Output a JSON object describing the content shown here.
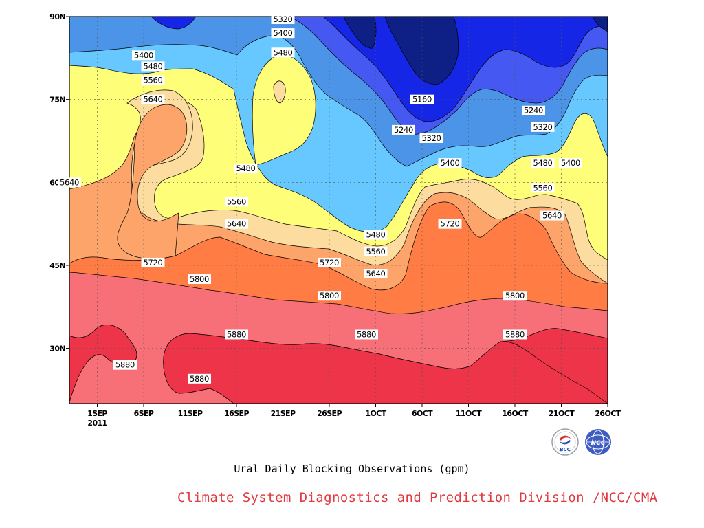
{
  "chart_data": {
    "type": "contour",
    "title": "Ural Daily Blocking Observations (gpm)",
    "x_tick_labels": [
      "1SEP",
      "6SEP",
      "11SEP",
      "16SEP",
      "21SEP",
      "26SEP",
      "1OCT",
      "6OCT",
      "11OCT",
      "16OCT",
      "21OCT",
      "26OCT"
    ],
    "x_year_label": "2011",
    "y_tick_labels": [
      "30N",
      "45N",
      "60N",
      "75N",
      "90N"
    ],
    "y_ticks": [
      30,
      45,
      60,
      75,
      90
    ],
    "ylim": [
      20,
      90
    ],
    "x_range_days": [
      "2011-08-29",
      "2011-10-26"
    ],
    "contour_levels": [
      5160,
      5240,
      5320,
      5400,
      5480,
      5560,
      5640,
      5720,
      5800,
      5880
    ],
    "band_colors": [
      "#ed3448",
      "#f77078",
      "#ff7d45",
      "#fda46b",
      "#fddc9f",
      "#fefe78",
      "#66c8fe",
      "#4b94e8",
      "#4558f2",
      "#1626e6",
      "#0e1f85"
    ],
    "contour_labels": [
      {
        "text": "5320",
        "date": "2011-09-21",
        "lat": 89.5
      },
      {
        "text": "5400",
        "date": "2011-09-21",
        "lat": 87
      },
      {
        "text": "5480",
        "date": "2011-09-21",
        "lat": 83.5
      },
      {
        "text": "5400",
        "date": "2011-09-06",
        "lat": 83
      },
      {
        "text": "5480",
        "date": "2011-09-07",
        "lat": 81
      },
      {
        "text": "5560",
        "date": "2011-09-07",
        "lat": 78.5
      },
      {
        "text": "5640",
        "date": "2011-09-07",
        "lat": 75
      },
      {
        "text": "5160",
        "date": "2011-10-06",
        "lat": 75
      },
      {
        "text": "5240",
        "date": "2011-10-18",
        "lat": 73
      },
      {
        "text": "5240",
        "date": "2011-10-04",
        "lat": 69.5
      },
      {
        "text": "5320",
        "date": "2011-10-07",
        "lat": 68
      },
      {
        "text": "5320",
        "date": "2011-10-19",
        "lat": 70
      },
      {
        "text": "5400",
        "date": "2011-10-22",
        "lat": 63.5
      },
      {
        "text": "5400",
        "date": "2011-10-09",
        "lat": 63.5
      },
      {
        "text": "5480",
        "date": "2011-10-19",
        "lat": 63.5
      },
      {
        "text": "5480",
        "date": "2011-09-17",
        "lat": 62.5
      },
      {
        "text": "5640",
        "date": "2011-08-29",
        "lat": 60
      },
      {
        "text": "5560",
        "date": "2011-10-19",
        "lat": 59
      },
      {
        "text": "5560",
        "date": "2011-09-16",
        "lat": 56.5
      },
      {
        "text": "5640",
        "date": "2011-10-20",
        "lat": 54
      },
      {
        "text": "5640",
        "date": "2011-09-16",
        "lat": 52.5
      },
      {
        "text": "5720",
        "date": "2011-10-09",
        "lat": 52.5
      },
      {
        "text": "5480",
        "date": "2011-10-01",
        "lat": 50.5
      },
      {
        "text": "5560",
        "date": "2011-10-01",
        "lat": 47.5
      },
      {
        "text": "5720",
        "date": "2011-09-26",
        "lat": 45.5
      },
      {
        "text": "5720",
        "date": "2011-09-07",
        "lat": 45.5
      },
      {
        "text": "5640",
        "date": "2011-10-01",
        "lat": 43.5
      },
      {
        "text": "5800",
        "date": "2011-09-12",
        "lat": 42.5
      },
      {
        "text": "5800",
        "date": "2011-09-26",
        "lat": 39.5
      },
      {
        "text": "5800",
        "date": "2011-10-16",
        "lat": 39.5
      },
      {
        "text": "5880",
        "date": "2011-09-16",
        "lat": 32.5
      },
      {
        "text": "5880",
        "date": "2011-09-30",
        "lat": 32.5
      },
      {
        "text": "5880",
        "date": "2011-10-16",
        "lat": 32.5
      },
      {
        "text": "5880",
        "date": "2011-09-04",
        "lat": 27
      },
      {
        "text": "5880",
        "date": "2011-09-12",
        "lat": 24.5
      }
    ]
  },
  "caption": "Ural Daily Blocking Observations (gpm)",
  "credit": "Climate System Diagnostics and Prediction Division /NCC/CMA",
  "logos": {
    "bcc_text": "BCC",
    "ncc_text": "NCC"
  }
}
